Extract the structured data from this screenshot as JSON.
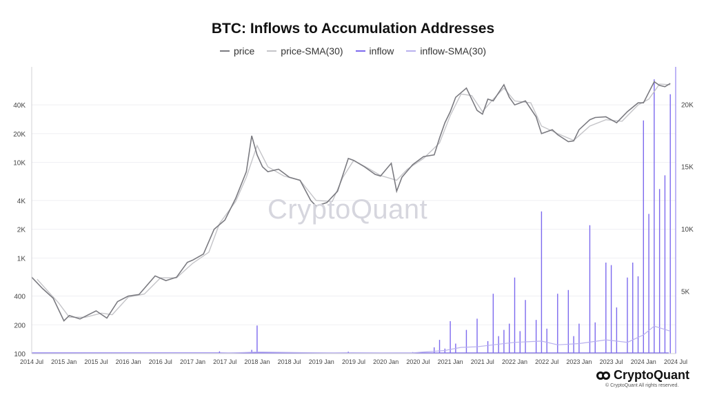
{
  "chart_data": {
    "type": "line",
    "title": "BTC: Inflows to Accumulation Addresses",
    "legend": [
      {
        "name": "price",
        "color": "#7a7a80"
      },
      {
        "name": "price-SMA(30)",
        "color": "#c4c4c8"
      },
      {
        "name": "inflow",
        "color": "#7b68ee"
      },
      {
        "name": "inflow-SMA(30)",
        "color": "#b8b0ee"
      }
    ],
    "x_ticks": [
      "2014 Jul",
      "2015 Jan",
      "2015 Jul",
      "2016 Jan",
      "2016 Jul",
      "2017 Jan",
      "2017 Jul",
      "2018 Jan",
      "2018 Jul",
      "2019 Jan",
      "2019 Jul",
      "2020 Jan",
      "2020 Jul",
      "2021 Jan",
      "2021 Jul",
      "2022 Jan",
      "2022 Jul",
      "2023 Jan",
      "2023 Jul",
      "2024 Jan",
      "2024 Jul"
    ],
    "y_left_ticks": [
      {
        "label": "100",
        "value": 100
      },
      {
        "label": "200",
        "value": 200
      },
      {
        "label": "400",
        "value": 400
      },
      {
        "label": "1K",
        "value": 1000
      },
      {
        "label": "2K",
        "value": 2000
      },
      {
        "label": "4K",
        "value": 4000
      },
      {
        "label": "10K",
        "value": 10000
      },
      {
        "label": "20K",
        "value": 20000
      },
      {
        "label": "40K",
        "value": 40000
      }
    ],
    "y_left_scale": "log",
    "y_left_range": [
      100,
      100000
    ],
    "y_right_ticks": [
      {
        "label": "0",
        "value": 0
      },
      {
        "label": "5K",
        "value": 5000
      },
      {
        "label": "10K",
        "value": 10000
      },
      {
        "label": "15K",
        "value": 15000
      },
      {
        "label": "20K",
        "value": 20000
      }
    ],
    "y_right_range": [
      0,
      23000
    ],
    "price": [
      [
        "2014-07",
        630
      ],
      [
        "2014-09",
        480
      ],
      [
        "2014-11",
        380
      ],
      [
        "2015-01",
        220
      ],
      [
        "2015-02",
        250
      ],
      [
        "2015-04",
        230
      ],
      [
        "2015-07",
        280
      ],
      [
        "2015-09",
        235
      ],
      [
        "2015-11",
        350
      ],
      [
        "2016-01",
        400
      ],
      [
        "2016-03",
        415
      ],
      [
        "2016-06",
        650
      ],
      [
        "2016-08",
        580
      ],
      [
        "2016-10",
        630
      ],
      [
        "2016-12",
        900
      ],
      [
        "2017-01",
        950
      ],
      [
        "2017-03",
        1100
      ],
      [
        "2017-05",
        2000
      ],
      [
        "2017-07",
        2500
      ],
      [
        "2017-09",
        4200
      ],
      [
        "2017-11",
        8000
      ],
      [
        "2017-12",
        19000
      ],
      [
        "2018-01",
        12000
      ],
      [
        "2018-02",
        9000
      ],
      [
        "2018-03",
        8000
      ],
      [
        "2018-05",
        8500
      ],
      [
        "2018-07",
        7000
      ],
      [
        "2018-09",
        6500
      ],
      [
        "2018-11",
        4000
      ],
      [
        "2018-12",
        3500
      ],
      [
        "2019-02",
        3800
      ],
      [
        "2019-04",
        5000
      ],
      [
        "2019-06",
        11000
      ],
      [
        "2019-07",
        10500
      ],
      [
        "2019-09",
        9000
      ],
      [
        "2019-11",
        7500
      ],
      [
        "2019-12",
        7200
      ],
      [
        "2020-02",
        9800
      ],
      [
        "2020-03",
        5000
      ],
      [
        "2020-04",
        7000
      ],
      [
        "2020-06",
        9500
      ],
      [
        "2020-08",
        11500
      ],
      [
        "2020-10",
        12000
      ],
      [
        "2020-11",
        18000
      ],
      [
        "2020-12",
        26000
      ],
      [
        "2021-01",
        34000
      ],
      [
        "2021-02",
        48000
      ],
      [
        "2021-04",
        60000
      ],
      [
        "2021-06",
        35000
      ],
      [
        "2021-07",
        32000
      ],
      [
        "2021-08",
        46000
      ],
      [
        "2021-09",
        44000
      ],
      [
        "2021-11",
        65000
      ],
      [
        "2021-12",
        48000
      ],
      [
        "2022-01",
        40000
      ],
      [
        "2022-03",
        44000
      ],
      [
        "2022-05",
        30000
      ],
      [
        "2022-06",
        20000
      ],
      [
        "2022-08",
        22000
      ],
      [
        "2022-09",
        19500
      ],
      [
        "2022-11",
        16500
      ],
      [
        "2022-12",
        16800
      ],
      [
        "2023-01",
        22000
      ],
      [
        "2023-03",
        28000
      ],
      [
        "2023-04",
        29500
      ],
      [
        "2023-06",
        30000
      ],
      [
        "2023-08",
        26000
      ],
      [
        "2023-10",
        34000
      ],
      [
        "2023-12",
        42000
      ],
      [
        "2024-01",
        42000
      ],
      [
        "2024-03",
        70000
      ],
      [
        "2024-04",
        64000
      ],
      [
        "2024-05",
        62000
      ],
      [
        "2024-06",
        67000
      ]
    ],
    "price_sma30": [
      [
        "2014-08",
        600
      ],
      [
        "2014-10",
        450
      ],
      [
        "2014-12",
        340
      ],
      [
        "2015-02",
        240
      ],
      [
        "2015-05",
        240
      ],
      [
        "2015-08",
        265
      ],
      [
        "2015-10",
        255
      ],
      [
        "2016-01",
        390
      ],
      [
        "2016-04",
        420
      ],
      [
        "2016-07",
        620
      ],
      [
        "2016-10",
        620
      ],
      [
        "2017-01",
        880
      ],
      [
        "2017-04",
        1150
      ],
      [
        "2017-06",
        2300
      ],
      [
        "2017-09",
        3900
      ],
      [
        "2017-11",
        7000
      ],
      [
        "2018-01",
        15000
      ],
      [
        "2018-03",
        9000
      ],
      [
        "2018-06",
        7200
      ],
      [
        "2018-09",
        6500
      ],
      [
        "2018-12",
        4000
      ],
      [
        "2019-03",
        3900
      ],
      [
        "2019-05",
        7000
      ],
      [
        "2019-07",
        10500
      ],
      [
        "2019-10",
        8500
      ],
      [
        "2019-12",
        7300
      ],
      [
        "2020-03",
        6500
      ],
      [
        "2020-05",
        8500
      ],
      [
        "2020-08",
        11000
      ],
      [
        "2020-11",
        16000
      ],
      [
        "2021-01",
        31000
      ],
      [
        "2021-03",
        52000
      ],
      [
        "2021-05",
        50000
      ],
      [
        "2021-07",
        34000
      ],
      [
        "2021-09",
        46000
      ],
      [
        "2021-11",
        60000
      ],
      [
        "2022-01",
        44000
      ],
      [
        "2022-04",
        42000
      ],
      [
        "2022-06",
        24000
      ],
      [
        "2022-09",
        20000
      ],
      [
        "2022-12",
        17000
      ],
      [
        "2023-03",
        24000
      ],
      [
        "2023-06",
        28000
      ],
      [
        "2023-09",
        27000
      ],
      [
        "2023-12",
        40000
      ],
      [
        "2024-02",
        46000
      ],
      [
        "2024-04",
        66000
      ],
      [
        "2024-06",
        65000
      ]
    ],
    "inflow": [
      [
        "2014-07",
        0
      ],
      [
        "2016-01",
        10
      ],
      [
        "2017-03",
        30
      ],
      [
        "2017-06",
        180
      ],
      [
        "2017-07",
        40
      ],
      [
        "2017-12",
        300
      ],
      [
        "2018-01",
        2250
      ],
      [
        "2018-02",
        80
      ],
      [
        "2018-10",
        60
      ],
      [
        "2019-06",
        150
      ],
      [
        "2019-12",
        40
      ],
      [
        "2020-06",
        120
      ],
      [
        "2020-10",
        500
      ],
      [
        "2020-11",
        1100
      ],
      [
        "2020-12",
        400
      ],
      [
        "2021-01",
        2600
      ],
      [
        "2021-02",
        800
      ],
      [
        "2021-04",
        1900
      ],
      [
        "2021-06",
        2800
      ],
      [
        "2021-08",
        1000
      ],
      [
        "2021-09",
        4800
      ],
      [
        "2021-10",
        1400
      ],
      [
        "2021-11",
        1900
      ],
      [
        "2021-12",
        2400
      ],
      [
        "2022-01",
        6100
      ],
      [
        "2022-02",
        1800
      ],
      [
        "2022-03",
        4300
      ],
      [
        "2022-05",
        2700
      ],
      [
        "2022-06",
        11400
      ],
      [
        "2022-07",
        2000
      ],
      [
        "2022-09",
        4800
      ],
      [
        "2022-11",
        5100
      ],
      [
        "2022-12",
        1400
      ],
      [
        "2023-01",
        2400
      ],
      [
        "2023-03",
        10300
      ],
      [
        "2023-04",
        2500
      ],
      [
        "2023-06",
        7300
      ],
      [
        "2023-07",
        7100
      ],
      [
        "2023-08",
        3700
      ],
      [
        "2023-10",
        6100
      ],
      [
        "2023-11",
        7300
      ],
      [
        "2023-12",
        6200
      ],
      [
        "2024-01",
        18700
      ],
      [
        "2024-02",
        11200
      ],
      [
        "2024-03",
        22000
      ],
      [
        "2024-04",
        13200
      ],
      [
        "2024-05",
        14300
      ],
      [
        "2024-06",
        20800
      ]
    ],
    "inflow_sma30": [
      [
        "2014-07",
        0
      ],
      [
        "2017-06",
        30
      ],
      [
        "2018-01",
        120
      ],
      [
        "2019-06",
        40
      ],
      [
        "2020-06",
        60
      ],
      [
        "2020-12",
        250
      ],
      [
        "2021-03",
        500
      ],
      [
        "2021-06",
        550
      ],
      [
        "2021-09",
        700
      ],
      [
        "2022-01",
        900
      ],
      [
        "2022-06",
        1000
      ],
      [
        "2022-09",
        700
      ],
      [
        "2023-01",
        800
      ],
      [
        "2023-06",
        1100
      ],
      [
        "2023-10",
        900
      ],
      [
        "2024-01",
        1500
      ],
      [
        "2024-03",
        2200
      ],
      [
        "2024-06",
        1800
      ]
    ]
  },
  "watermark": "CryptoQuant",
  "brand": {
    "name": "CryptoQuant",
    "copyright": "© CryptoQuant All rights reserved."
  }
}
